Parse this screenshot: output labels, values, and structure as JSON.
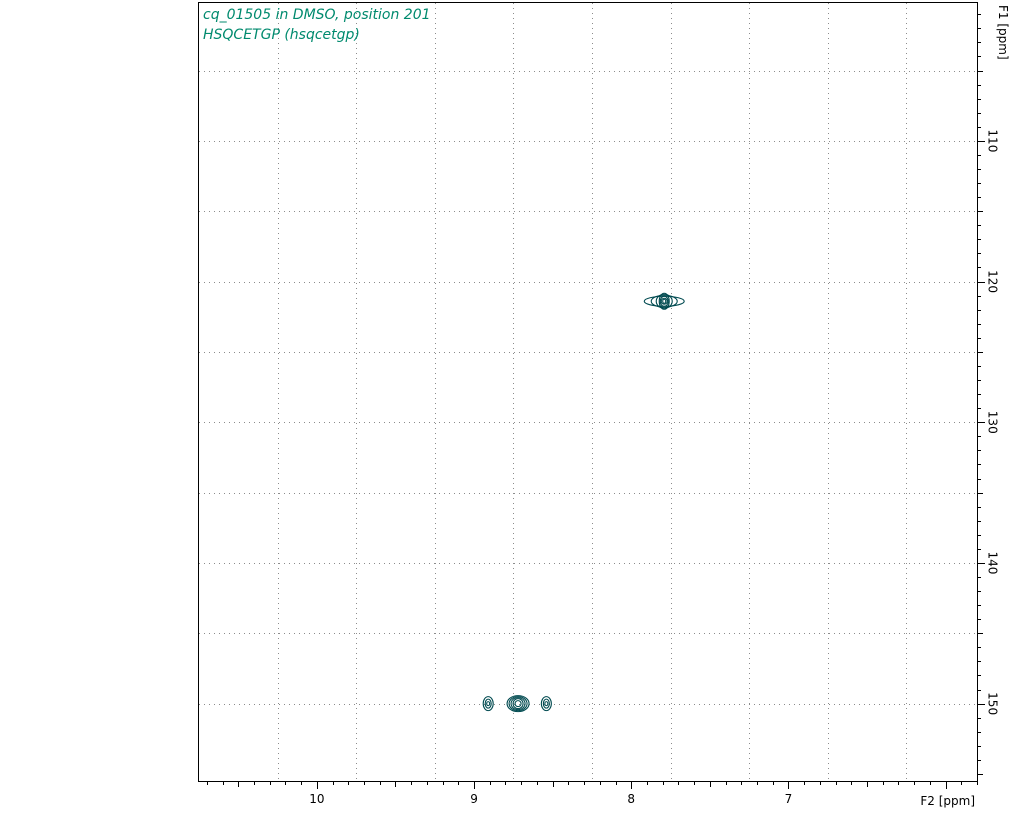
{
  "chart_data": {
    "type": "scatter",
    "subtype": "2D NMR contour plot",
    "title": "cq_01505 in DMSO, position 201",
    "subtitle": "HSQCETGP (hsqcetgp)",
    "xlabel": "F2 [ppm]",
    "ylabel": "F1 [ppm]",
    "xlim": [
      10.75,
      5.8
    ],
    "ylim": [
      100.2,
      155.5
    ],
    "x_reversed": true,
    "y_reversed": true,
    "x_ticks": [
      10,
      9,
      8,
      7
    ],
    "y_ticks": [
      110,
      120,
      130,
      140,
      150
    ],
    "x_gridlines": [
      10.25,
      9.75,
      9.25,
      8.75,
      8.25,
      7.75,
      7.25,
      6.75,
      6.25
    ],
    "y_gridlines": [
      100,
      105,
      110,
      115,
      120,
      125,
      130,
      135,
      140,
      145,
      150
    ],
    "grid": "dotted",
    "series": [
      {
        "peaks": [
          {
            "x": 7.79,
            "y": 121.4
          },
          {
            "x": 8.72,
            "y": 150.0
          },
          {
            "x": 8.91,
            "y": 150.0
          },
          {
            "x": 8.54,
            "y": 150.0
          }
        ]
      }
    ],
    "colors": {
      "title": "#008a6e",
      "contour": "#004a50",
      "grid": "#8c8c8c",
      "axis": "#000000"
    }
  }
}
